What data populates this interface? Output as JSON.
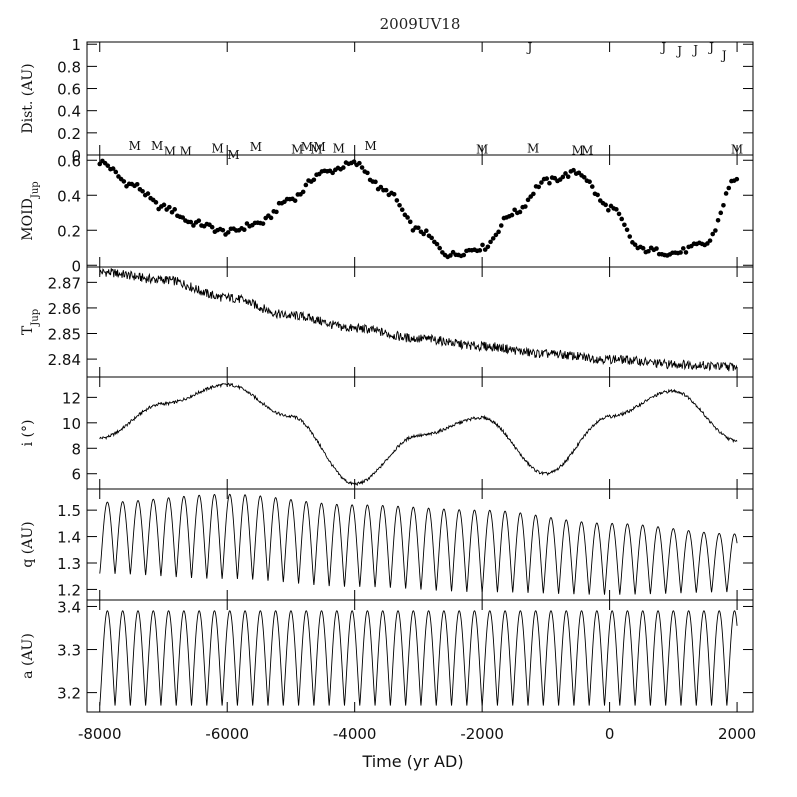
{
  "chart_data": {
    "type": "line",
    "title": "2009UV18",
    "xlabel": "Time (yr AD)",
    "xlim": [
      -8200,
      2250
    ],
    "x_ticks": [
      -8000,
      -6000,
      -4000,
      -2000,
      0,
      2000
    ],
    "x_tick_labels": [
      "-8000",
      "-6000",
      "-4000",
      "-2000",
      "0",
      "2000"
    ],
    "panels": [
      {
        "key": "dist",
        "ylabel": "Dist. (AU)",
        "ylim": [
          0,
          1.02
        ],
        "y_ticks": [
          0,
          0.2,
          0.4,
          0.6,
          0.8,
          1
        ],
        "y_tick_labels": [
          "0",
          "0.2",
          "0.4",
          "0.6",
          "0.8",
          "1"
        ],
        "encounters": [
          {
            "t": -7450,
            "d": 0.08,
            "body": "M"
          },
          {
            "t": -7100,
            "d": 0.08,
            "body": "M"
          },
          {
            "t": -6900,
            "d": 0.03,
            "body": "M"
          },
          {
            "t": -6650,
            "d": 0.03,
            "body": "M"
          },
          {
            "t": -6150,
            "d": 0.06,
            "body": "M"
          },
          {
            "t": -5900,
            "d": 0.0,
            "body": "M"
          },
          {
            "t": -5550,
            "d": 0.07,
            "body": "M"
          },
          {
            "t": -4900,
            "d": 0.05,
            "body": "M"
          },
          {
            "t": -4750,
            "d": 0.07,
            "body": "M"
          },
          {
            "t": -4600,
            "d": 0.05,
            "body": "M"
          },
          {
            "t": -4550,
            "d": 0.07,
            "body": "M"
          },
          {
            "t": -4250,
            "d": 0.06,
            "body": "M"
          },
          {
            "t": -3750,
            "d": 0.08,
            "body": "M"
          },
          {
            "t": -2000,
            "d": 0.05,
            "body": "M"
          },
          {
            "t": -1200,
            "d": 0.06,
            "body": "M"
          },
          {
            "t": -500,
            "d": 0.04,
            "body": "M"
          },
          {
            "t": -350,
            "d": 0.04,
            "body": "M"
          },
          {
            "t": 2000,
            "d": 0.05,
            "body": "M"
          },
          {
            "t": -1250,
            "d": 0.97,
            "body": "J"
          },
          {
            "t": 850,
            "d": 0.97,
            "body": "J"
          },
          {
            "t": 1100,
            "d": 0.94,
            "body": "J"
          },
          {
            "t": 1350,
            "d": 0.95,
            "body": "J"
          },
          {
            "t": 1600,
            "d": 0.97,
            "body": "J"
          },
          {
            "t": 1800,
            "d": 0.9,
            "body": "J"
          }
        ]
      },
      {
        "key": "moid",
        "ylabel": "MOID",
        "ylabel_sub": "Jup",
        "ylim": [
          -0.01,
          0.63
        ],
        "y_ticks": [
          0,
          0.2,
          0.4,
          0.6
        ],
        "y_tick_labels": [
          "0",
          "0.2",
          "0.4",
          "0.6"
        ],
        "style": "points",
        "x": [
          -8000,
          -7500,
          -7000,
          -6500,
          -6000,
          -5500,
          -5000,
          -4500,
          -4000,
          -3500,
          -3000,
          -2500,
          -2000,
          -1500,
          -1000,
          -500,
          0,
          500,
          1000,
          1500,
          2000
        ],
        "y": [
          0.59,
          0.46,
          0.33,
          0.24,
          0.19,
          0.24,
          0.38,
          0.53,
          0.58,
          0.42,
          0.2,
          0.06,
          0.1,
          0.3,
          0.48,
          0.53,
          0.33,
          0.09,
          0.07,
          0.12,
          0.5
        ]
      },
      {
        "key": "tjup",
        "ylabel": "T",
        "ylabel_sub": "Jup",
        "ylim": [
          2.833,
          2.876
        ],
        "y_ticks": [
          2.84,
          2.85,
          2.86,
          2.87
        ],
        "y_tick_labels": [
          "2.84",
          "2.85",
          "2.86",
          "2.87"
        ],
        "style": "line",
        "x": [
          -8000,
          -7000,
          -6000,
          -5000,
          -4000,
          -3000,
          -2000,
          -1000,
          0,
          1000,
          2000
        ],
        "y": [
          2.874,
          2.871,
          2.864,
          2.857,
          2.852,
          2.848,
          2.845,
          2.842,
          2.84,
          2.838,
          2.837
        ]
      },
      {
        "key": "incl",
        "ylabel": "i (°)",
        "ylim": [
          4.8,
          13.6
        ],
        "y_ticks": [
          6,
          8,
          10,
          12
        ],
        "y_tick_labels": [
          "6",
          "8",
          "10",
          "12"
        ],
        "style": "line",
        "x": [
          -8000,
          -7000,
          -6000,
          -5000,
          -4000,
          -3000,
          -2000,
          -1000,
          0,
          1000,
          2000
        ],
        "y": [
          8.8,
          11.5,
          13.0,
          10.5,
          5.2,
          9.0,
          10.4,
          6.0,
          10.5,
          12.5,
          8.6
        ]
      },
      {
        "key": "q",
        "ylabel": "q (AU)",
        "ylim": [
          1.16,
          1.58
        ],
        "y_ticks": [
          1.2,
          1.3,
          1.4,
          1.5
        ],
        "y_tick_labels": [
          "1.2",
          "1.3",
          "1.4",
          "1.5"
        ],
        "style": "line",
        "oscillation_period_yr": 240,
        "x": [
          -8000,
          -6000,
          -4000,
          -2000,
          0,
          2000
        ],
        "max": [
          1.53,
          1.56,
          1.52,
          1.5,
          1.45,
          1.41
        ],
        "min": [
          1.26,
          1.24,
          1.21,
          1.19,
          1.18,
          1.19
        ]
      },
      {
        "key": "a",
        "ylabel": "a (AU)",
        "ylim": [
          3.155,
          3.415
        ],
        "y_ticks": [
          3.2,
          3.3,
          3.4
        ],
        "y_tick_labels": [
          "3.2",
          "3.3",
          "3.4"
        ],
        "style": "line",
        "oscillation_period_yr": 240,
        "x": [
          -8000,
          2000
        ],
        "max": [
          3.39,
          3.39
        ],
        "min": [
          3.17,
          3.17
        ]
      }
    ]
  }
}
